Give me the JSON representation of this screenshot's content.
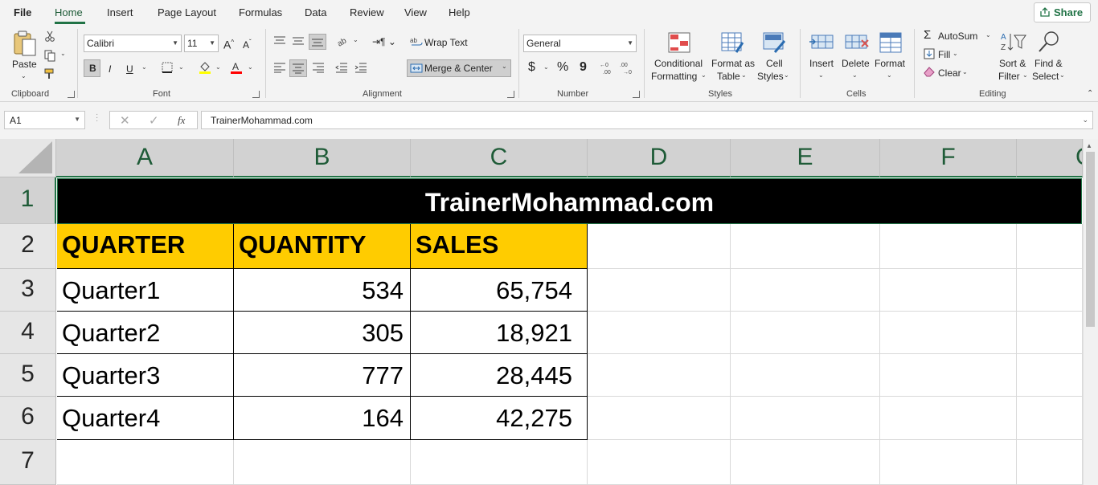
{
  "menu": {
    "tabs": [
      "File",
      "Home",
      "Insert",
      "Page Layout",
      "Formulas",
      "Data",
      "Review",
      "View",
      "Help"
    ],
    "active": "Home",
    "share_label": "Share"
  },
  "ribbon": {
    "clipboard": {
      "paste": "Paste",
      "label": "Clipboard"
    },
    "font": {
      "name": "Calibri",
      "size": "11",
      "bold": "B",
      "italic": "I",
      "underline": "U",
      "label": "Font"
    },
    "alignment": {
      "wrap_text": "Wrap Text",
      "merge_center": "Merge & Center",
      "label": "Alignment"
    },
    "number": {
      "format": "General",
      "currency": "$",
      "percent": "%",
      "comma": "9",
      "label": "Number"
    },
    "styles": {
      "conditional": [
        "Conditional",
        "Formatting"
      ],
      "format_table": [
        "Format as",
        "Table"
      ],
      "cell_styles": [
        "Cell",
        "Styles"
      ],
      "label": "Styles"
    },
    "cells": {
      "insert": "Insert",
      "delete": "Delete",
      "format": "Format",
      "label": "Cells"
    },
    "editing": {
      "autosum": "AutoSum",
      "fill": "Fill",
      "clear": "Clear",
      "sort_filter": [
        "Sort &",
        "Filter"
      ],
      "find_select": [
        "Find &",
        "Select"
      ],
      "label": "Editing"
    }
  },
  "formula_bar": {
    "name_box": "A1",
    "fx": "fx",
    "content": "TrainerMohammad.com"
  },
  "sheet": {
    "columns": [
      "A",
      "B",
      "C",
      "D",
      "E",
      "F",
      "G"
    ],
    "rows": [
      "1",
      "2",
      "3",
      "4",
      "5",
      "6",
      "7"
    ],
    "title": "TrainerMohammad.com",
    "headers": [
      "QUARTER",
      "QUANTITY",
      "SALES"
    ],
    "data": [
      [
        "Quarter1",
        "534",
        "65,754"
      ],
      [
        "Quarter2",
        "305",
        "18,921"
      ],
      [
        "Quarter3",
        "777",
        "28,445"
      ],
      [
        "Quarter4",
        "164",
        "42,275"
      ]
    ],
    "colors": {
      "header_fill": "#ffcc00",
      "title_fill": "#000000",
      "title_text": "#ffffff",
      "accent": "#217346"
    }
  }
}
